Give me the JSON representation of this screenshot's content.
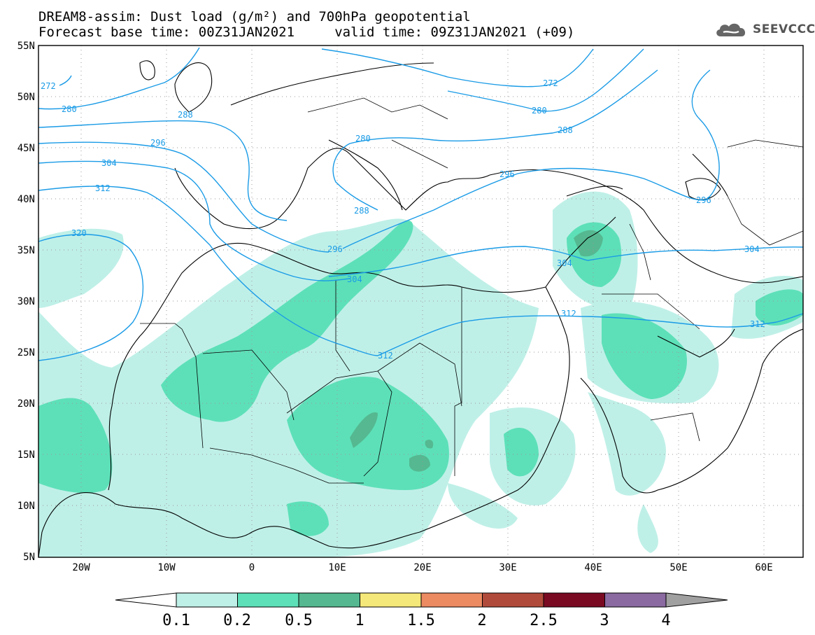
{
  "header": {
    "line1": "DREAM8-assim: Dust load (g/m²) and 700hPa geopotential",
    "line2": "Forecast base time: 00Z31JAN2021     valid time: 09Z31JAN2021 (+09)"
  },
  "logo": {
    "text": "SEEVCCC",
    "icon": "cloud-icon"
  },
  "axes": {
    "lat_ticks": [
      "55N",
      "50N",
      "45N",
      "40N",
      "35N",
      "30N",
      "25N",
      "20N",
      "15N",
      "10N",
      "5N"
    ],
    "lon_ticks": [
      "20W",
      "10W",
      "0",
      "10E",
      "20E",
      "30E",
      "40E",
      "50E",
      "60E"
    ]
  },
  "contours": {
    "labels": [
      "272",
      "280",
      "288",
      "296",
      "304",
      "312",
      "320",
      "272",
      "280",
      "288",
      "280",
      "288",
      "296",
      "304",
      "296",
      "304",
      "312",
      "312",
      "304",
      "312",
      "296"
    ]
  },
  "colorbar": {
    "labels": [
      "0.1",
      "0.2",
      "0.5",
      "1",
      "1.5",
      "2",
      "2.5",
      "3",
      "4"
    ],
    "colors": [
      "#ffffff",
      "#bff0e8",
      "#5de0b8",
      "#55b890",
      "#f5e87a",
      "#ec8a62",
      "#b04a3a",
      "#7a0a22",
      "#8a6aa0",
      "#a0a0a0"
    ]
  },
  "colors": {
    "contour": "#1a9be6",
    "dust_low": "#bff0e8",
    "dust_mid": "#5de0b8",
    "dust_high": "#55b890"
  }
}
